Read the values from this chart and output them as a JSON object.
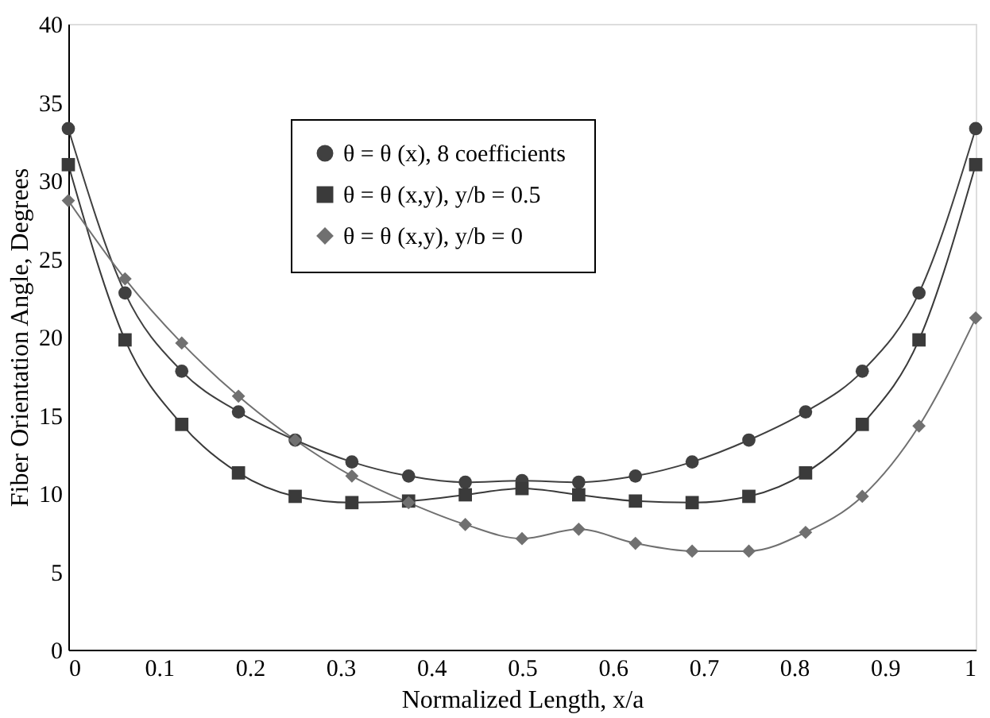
{
  "chart_data": {
    "type": "line",
    "xlabel": "Normalized Length, x/a",
    "ylabel": "Fiber Orientation Angle, Degrees",
    "x": [
      0,
      0.0625,
      0.125,
      0.1875,
      0.25,
      0.3125,
      0.375,
      0.4375,
      0.5,
      0.5625,
      0.625,
      0.6875,
      0.75,
      0.8125,
      0.875,
      0.9375,
      1
    ],
    "series": [
      {
        "name": "θ = θ  (x), 8 coefficients",
        "color": "#404040",
        "marker": "circle",
        "values": [
          33.3,
          22.8,
          17.8,
          15.2,
          13.4,
          12.0,
          11.1,
          10.7,
          10.8,
          10.7,
          11.1,
          12.0,
          13.4,
          15.2,
          17.8,
          22.8,
          33.3
        ]
      },
      {
        "name": "θ = θ  (x,y), y/b = 0.5",
        "color": "#3a3a3a",
        "marker": "square",
        "values": [
          31.0,
          19.8,
          14.4,
          11.3,
          9.8,
          9.4,
          9.5,
          9.9,
          10.3,
          9.9,
          9.5,
          9.4,
          9.8,
          11.3,
          14.4,
          19.8,
          31.0
        ]
      },
      {
        "name": "θ = θ  (x,y), y/b = 0",
        "color": "#707070",
        "marker": "diamond",
        "values": [
          28.7,
          23.7,
          19.6,
          16.2,
          13.4,
          11.1,
          9.4,
          8.0,
          7.1,
          7.7,
          6.8,
          6.3,
          6.3,
          7.5,
          9.8,
          14.3,
          21.2
        ]
      }
    ],
    "xlim": [
      0,
      1
    ],
    "xticks": [
      0,
      0.1,
      0.2,
      0.3,
      0.4,
      0.5,
      0.6,
      0.7,
      0.8,
      0.9,
      1
    ],
    "ylim": [
      0,
      40
    ],
    "yticks": [
      0,
      5,
      10,
      15,
      20,
      25,
      30,
      35,
      40
    ],
    "grid": false,
    "legend": "top",
    "line_style": "solid"
  }
}
